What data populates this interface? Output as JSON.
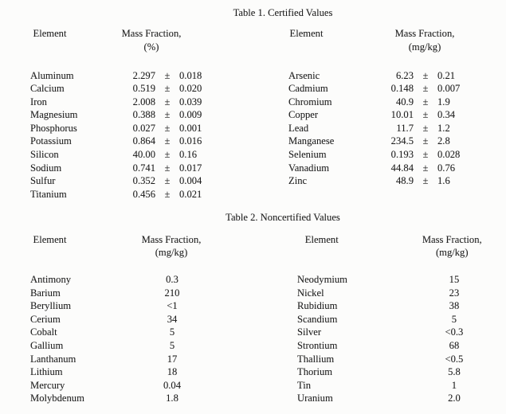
{
  "colors": {
    "background": "#fcfcfb",
    "text": "#1e1e1e"
  },
  "table1": {
    "title": "Table 1. Certified Values",
    "left": {
      "header": {
        "element": "Element",
        "mass_fraction_line1": "Mass Fraction,",
        "mass_fraction_line2": "(%)"
      },
      "rows": [
        {
          "element": "Aluminum",
          "value": "2.297",
          "pm": "±",
          "uncertainty": "0.018"
        },
        {
          "element": "Calcium",
          "value": "0.519",
          "pm": "±",
          "uncertainty": "0.020"
        },
        {
          "element": "Iron",
          "value": "2.008",
          "pm": "±",
          "uncertainty": "0.039"
        },
        {
          "element": "Magnesium",
          "value": "0.388",
          "pm": "±",
          "uncertainty": "0.009"
        },
        {
          "element": "Phosphorus",
          "value": "0.027",
          "pm": "±",
          "uncertainty": "0.001"
        },
        {
          "element": "Potassium",
          "value": "0.864",
          "pm": "±",
          "uncertainty": "0.016"
        },
        {
          "element": "Silicon",
          "value": "40.00",
          "pm": "±",
          "uncertainty": "0.16"
        },
        {
          "element": "Sodium",
          "value": "0.741",
          "pm": "±",
          "uncertainty": "0.017"
        },
        {
          "element": "Sulfur",
          "value": "0.352",
          "pm": "±",
          "uncertainty": "0.004"
        },
        {
          "element": "Titanium",
          "value": "0.456",
          "pm": "±",
          "uncertainty": "0.021"
        }
      ]
    },
    "right": {
      "header": {
        "element": "Element",
        "mass_fraction_line1": "Mass Fraction,",
        "mass_fraction_line2": "(mg/kg)"
      },
      "rows": [
        {
          "element": "Arsenic",
          "value": "6.23",
          "pm": "±",
          "uncertainty": "0.21"
        },
        {
          "element": "Cadmium",
          "value": "0.148",
          "pm": "±",
          "uncertainty": "0.007"
        },
        {
          "element": "Chromium",
          "value": "40.9",
          "pm": "±",
          "uncertainty": "1.9"
        },
        {
          "element": "Copper",
          "value": "10.01",
          "pm": "±",
          "uncertainty": "0.34"
        },
        {
          "element": "Lead",
          "value": "11.7",
          "pm": "±",
          "uncertainty": "1.2"
        },
        {
          "element": "Manganese",
          "value": "234.5",
          "pm": "±",
          "uncertainty": "2.8"
        },
        {
          "element": "Selenium",
          "value": "0.193",
          "pm": "±",
          "uncertainty": "0.028"
        },
        {
          "element": "Vanadium",
          "value": "44.84",
          "pm": "±",
          "uncertainty": "0.76"
        },
        {
          "element": "Zinc",
          "value": "48.9",
          "pm": "±",
          "uncertainty": "1.6"
        }
      ]
    }
  },
  "table2": {
    "title": "Table 2. Noncertified Values",
    "left": {
      "header": {
        "element": "Element",
        "mass_fraction_line1": "Mass Fraction,",
        "mass_fraction_line2": "(mg/kg)"
      },
      "rows": [
        {
          "element": "Antimony",
          "value": "0.3"
        },
        {
          "element": "Barium",
          "value": "210"
        },
        {
          "element": "Beryllium",
          "value": "<1"
        },
        {
          "element": "Cerium",
          "value": "34"
        },
        {
          "element": "Cobalt",
          "value": "5"
        },
        {
          "element": "Gallium",
          "value": "5"
        },
        {
          "element": "Lanthanum",
          "value": "17"
        },
        {
          "element": "Lithium",
          "value": "18"
        },
        {
          "element": "Mercury",
          "value": "0.04"
        },
        {
          "element": "Molybdenum",
          "value": "1.8"
        }
      ]
    },
    "right": {
      "header": {
        "element": "Element",
        "mass_fraction_line1": "Mass Fraction,",
        "mass_fraction_line2": "(mg/kg)"
      },
      "rows": [
        {
          "element": "Neodymium",
          "value": "15"
        },
        {
          "element": "Nickel",
          "value": "23"
        },
        {
          "element": "Rubidium",
          "value": "38"
        },
        {
          "element": "Scandium",
          "value": "5"
        },
        {
          "element": "Silver",
          "value": "<0.3"
        },
        {
          "element": "Strontium",
          "value": "68"
        },
        {
          "element": "Thallium",
          "value": "<0.5"
        },
        {
          "element": "Thorium",
          "value": "5.8"
        },
        {
          "element": "Tin",
          "value": "1"
        },
        {
          "element": "Uranium",
          "value": "2.0"
        }
      ]
    }
  }
}
